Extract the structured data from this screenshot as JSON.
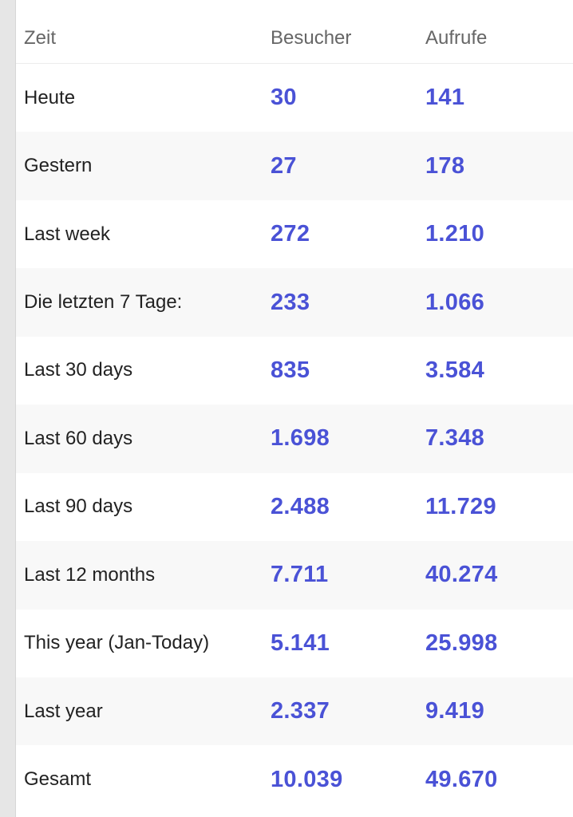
{
  "header": {
    "col_time": "Zeit",
    "col_visitors": "Besucher",
    "col_views": "Aufrufe"
  },
  "rows": [
    {
      "label": "Heute",
      "visitors": "30",
      "views": "141"
    },
    {
      "label": "Gestern",
      "visitors": "27",
      "views": "178"
    },
    {
      "label": "Last week",
      "visitors": "272",
      "views": "1.210"
    },
    {
      "label": "Die letzten 7 Tage:",
      "visitors": "233",
      "views": "1.066"
    },
    {
      "label": "Last 30 days",
      "visitors": "835",
      "views": "3.584"
    },
    {
      "label": "Last 60 days",
      "visitors": "1.698",
      "views": "7.348"
    },
    {
      "label": "Last 90 days",
      "visitors": "2.488",
      "views": "11.729"
    },
    {
      "label": "Last 12 months",
      "visitors": "7.711",
      "views": "40.274"
    },
    {
      "label": "This year (Jan-Today)",
      "visitors": "5.141",
      "views": "25.998"
    },
    {
      "label": "Last year",
      "visitors": "2.337",
      "views": "9.419"
    },
    {
      "label": "Gesamt",
      "visitors": "10.039",
      "views": "49.670"
    }
  ],
  "colors": {
    "number_accent": "#4a52d6",
    "row_shade": "#f8f8f8",
    "header_text": "#666666"
  }
}
